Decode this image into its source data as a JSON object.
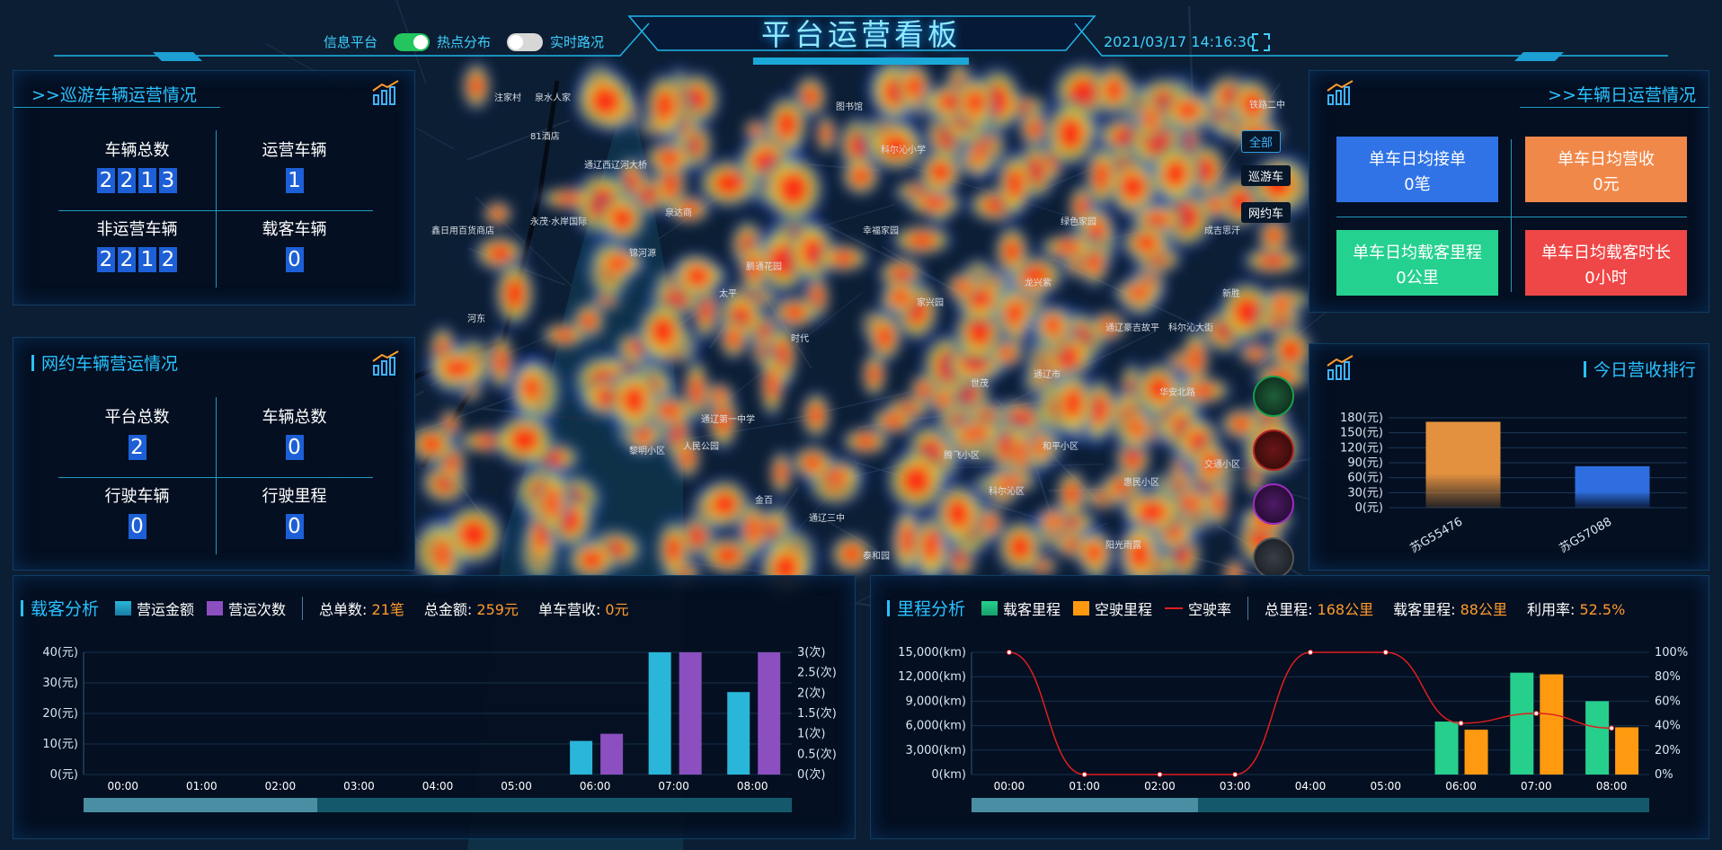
{
  "header": {
    "title": "平台运营看板",
    "datetime": "2021/03/17 14:16:30",
    "toggles": [
      {
        "label": "信息平台"
      },
      {
        "label": "热点分布",
        "on": true
      },
      {
        "label": "实时路况",
        "on": false
      }
    ],
    "fullscreen_icon": "fullscreen-icon"
  },
  "cruise": {
    "title": ">>巡游车辆运营情况",
    "icon": "trend-chart-icon",
    "stats": [
      {
        "label": "车辆总数",
        "value": "2213"
      },
      {
        "label": "运营车辆",
        "value": "1"
      },
      {
        "label": "非运营车辆",
        "value": "2212"
      },
      {
        "label": "载客车辆",
        "value": "0"
      }
    ]
  },
  "ridehail": {
    "title": "网约车辆营运情况",
    "icon": "trend-chart-icon",
    "stats": [
      {
        "label": "平台总数",
        "value": "2"
      },
      {
        "label": "车辆总数",
        "value": "0"
      },
      {
        "label": "行驶车辆",
        "value": "0"
      },
      {
        "label": "行驶里程",
        "value": "0"
      }
    ]
  },
  "daily": {
    "title": ">>车辆日运营情况",
    "icon": "trend-chart-icon",
    "cards": [
      {
        "label": "单车日均接单",
        "value": "0笔",
        "color": "#2f73e6"
      },
      {
        "label": "单车日均营收",
        "value": "0元",
        "color": "#f0884a"
      },
      {
        "label": "单车日均载客里程",
        "value": "0公里",
        "color": "#25d18f"
      },
      {
        "label": "单车日均载客时长",
        "value": "0小时",
        "color": "#ef4747"
      }
    ]
  },
  "map": {
    "filters": [
      "全部",
      "巡游车",
      "网约车"
    ],
    "labels": [
      "注家村",
      "泉水人家",
      "81酒店",
      "通辽西辽河大桥",
      "永茂·水岸国际",
      "图书馆",
      "科尔沁小学",
      "鑫日用百货商店",
      "泉达商",
      "鹏通花园",
      "龙兴紫",
      "通辽豪吉故平",
      "科尔沁大街",
      "通辽市",
      "世茂",
      "人民公园",
      "黎明小区",
      "和平小区",
      "通辽三中",
      "阳光雨露",
      "泰和园",
      "金百",
      "家兴园",
      "锦河源",
      "时代",
      "绿色家园",
      "成吉思汗",
      "铁路二中",
      "通辽第一中学",
      "腾飞小区",
      "惠民小区",
      "新胜",
      "河东",
      "太平",
      "幸福家园",
      "科尔沁区",
      "华安北路",
      "交通小区"
    ],
    "vehicle_icons": [
      "green-car-icon",
      "red-car-icon",
      "purple-car-icon",
      "grey-car-icon"
    ]
  },
  "ranking": {
    "title": "今日营收排行",
    "icon": "trend-chart-icon"
  },
  "passenger": {
    "title": "载客分析",
    "legend": [
      "营运金额",
      "营运次数"
    ],
    "stats": [
      {
        "label": "总单数: ",
        "value": "21笔"
      },
      {
        "label": "总金额: ",
        "value": "259元"
      },
      {
        "label": "单车营收: ",
        "value": "0元"
      }
    ]
  },
  "mileage": {
    "title": "里程分析",
    "legend": [
      "载客里程",
      "空驶里程",
      "空驶率"
    ],
    "stats": [
      {
        "label": "总里程: ",
        "value": "168公里"
      },
      {
        "label": "载客里程: ",
        "value": "88公里"
      },
      {
        "label": "利用率: ",
        "value": "52.5%"
      }
    ]
  },
  "chart_data": [
    {
      "type": "bar",
      "title": "今日营收排行",
      "categories": [
        "苏G55476",
        "苏G57088"
      ],
      "values": [
        172,
        83
      ],
      "yticks": [
        "0(元)",
        "30(元)",
        "60(元)",
        "90(元)",
        "120(元)",
        "150(元)",
        "180(元)"
      ],
      "ylim": [
        0,
        180
      ],
      "colors": [
        "#e3913f",
        "#2f6ee0"
      ]
    },
    {
      "type": "bar",
      "title": "载客分析",
      "categories": [
        "00:00",
        "01:00",
        "02:00",
        "03:00",
        "04:00",
        "05:00",
        "06:00",
        "07:00",
        "08:00"
      ],
      "series": [
        {
          "name": "营运金额",
          "axis": "left",
          "values": [
            0,
            0,
            0,
            0,
            0,
            0,
            11,
            40,
            27
          ],
          "color": "#29b6d8"
        },
        {
          "name": "营运次数",
          "axis": "right",
          "values": [
            0,
            0,
            0,
            0,
            0,
            0,
            1,
            3,
            3
          ],
          "color": "#8b4fc0"
        }
      ],
      "yticks_left": [
        "0(元)",
        "10(元)",
        "20(元)",
        "30(元)",
        "40(元)"
      ],
      "ylim_left": [
        0,
        40
      ],
      "yticks_right": [
        "0(次)",
        "0.5(次)",
        "1(次)",
        "1.5(次)",
        "2(次)",
        "2.5(次)",
        "3(次)"
      ],
      "ylim_right": [
        0,
        3
      ]
    },
    {
      "type": "bar",
      "title": "里程分析",
      "categories": [
        "00:00",
        "01:00",
        "02:00",
        "03:00",
        "04:00",
        "05:00",
        "06:00",
        "07:00",
        "08:00"
      ],
      "series": [
        {
          "name": "载客里程",
          "type": "bar",
          "axis": "left",
          "values": [
            0,
            0,
            0,
            0,
            0,
            0,
            6500,
            12500,
            9000
          ],
          "color": "#27cf8c"
        },
        {
          "name": "空驶里程",
          "type": "bar",
          "axis": "left",
          "values": [
            0,
            0,
            0,
            0,
            0,
            0,
            5500,
            12300,
            5800
          ],
          "color": "#ff9a10"
        },
        {
          "name": "空驶率",
          "type": "line",
          "axis": "right",
          "values": [
            100,
            0,
            0,
            0,
            100,
            100,
            42,
            50,
            38
          ],
          "color": "#e01e1e"
        }
      ],
      "yticks_left": [
        "0(km)",
        "3,000(km)",
        "6,000(km)",
        "9,000(km)",
        "12,000(km)",
        "15,000(km)"
      ],
      "ylim_left": [
        0,
        15000
      ],
      "yticks_right": [
        "0%",
        "20%",
        "40%",
        "60%",
        "80%",
        "100%"
      ],
      "ylim_right": [
        0,
        100
      ]
    }
  ]
}
